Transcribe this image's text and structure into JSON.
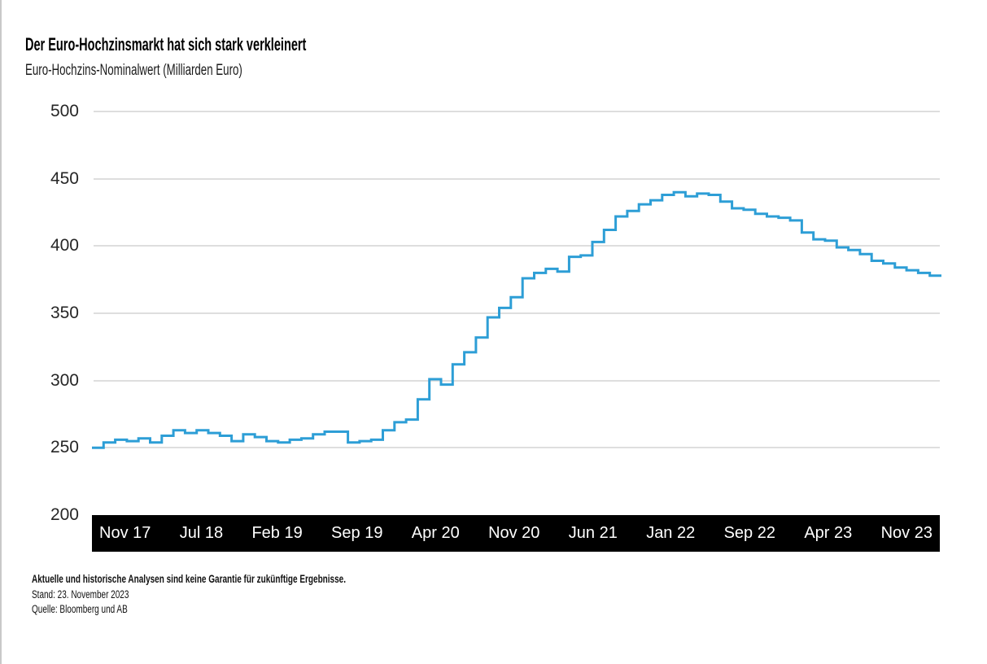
{
  "header": {
    "title": "Der Euro-Hochzinsmarkt hat sich stark verkleinert",
    "subtitle": "Euro-Hochzins-Nominalwert (Milliarden Euro)"
  },
  "chart_data": {
    "type": "line",
    "line_style": "step",
    "title": "Der Euro-Hochzinsmarkt hat sich stark verkleinert",
    "ylabel": "Euro-Hochzins-Nominalwert (Milliarden Euro)",
    "unit": "Milliarden Euro",
    "grid": "horizontal",
    "legend": "none",
    "line_color": "#2D9ED6",
    "ylim": [
      200,
      500
    ],
    "y_ticks": [
      500,
      450,
      400,
      350,
      300,
      250,
      200
    ],
    "x_tick_labels": [
      "Nov 17",
      "Jul 18",
      "Feb 19",
      "Sep 19",
      "Apr 20",
      "Nov 20",
      "Jun 21",
      "Jan 22",
      "Sep 22",
      "Apr 23",
      "Nov 23"
    ],
    "x_range": {
      "start": "Nov 2017",
      "end": "Nov 2023",
      "frequency": "monthly"
    },
    "values": [
      250,
      254,
      256,
      255,
      257,
      254,
      259,
      263,
      261,
      263,
      261,
      259,
      255,
      260,
      258,
      255,
      254,
      256,
      257,
      260,
      262,
      262,
      254,
      255,
      256,
      263,
      269,
      271,
      286,
      301,
      297,
      312,
      321,
      332,
      347,
      354,
      362,
      376,
      380,
      383,
      381,
      392,
      393,
      403,
      412,
      422,
      426,
      431,
      434,
      438,
      440,
      437,
      439,
      438,
      433,
      428,
      427,
      424,
      422,
      421,
      419,
      410,
      405,
      404,
      399,
      397,
      394,
      389,
      387,
      384,
      382,
      380,
      378
    ]
  },
  "footer": {
    "disclaimer": "Aktuelle und historische Analysen sind keine Garantie für zukünftige Ergebnisse.",
    "stand": "Stand: 23. November 2023",
    "quelle": "Quelle: Bloomberg und AB"
  },
  "colors": {
    "line": "#2D9ED6",
    "grid": "#dedede",
    "axis_bar_bg": "#000000",
    "axis_bar_text": "#ffffff",
    "text": "#111111",
    "page_border": "#c9c9c9"
  }
}
